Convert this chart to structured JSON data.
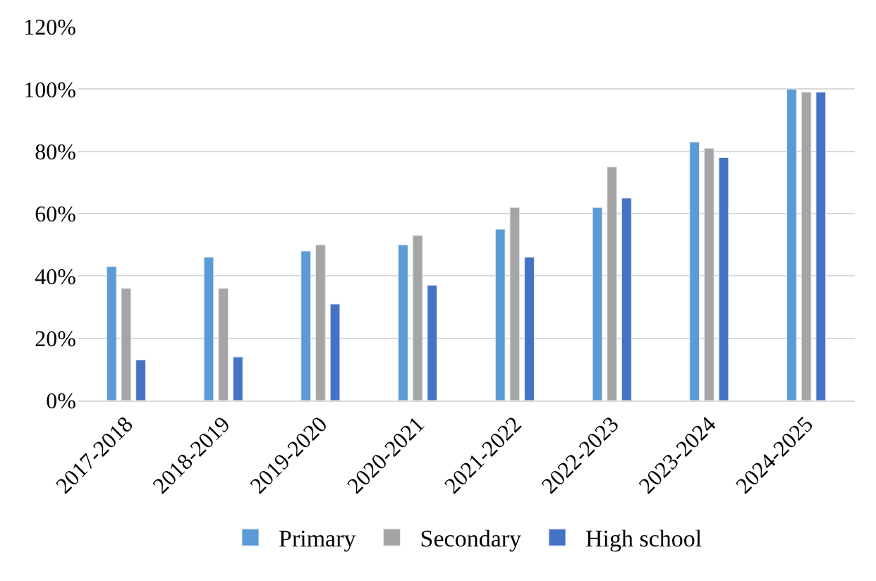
{
  "chart_data": {
    "type": "bar",
    "categories": [
      "2017-2018",
      "2018-2019",
      "2019-2020",
      "2020-2021",
      "2021-2022",
      "2022-2023",
      "2023-2024",
      "2024-2025"
    ],
    "series": [
      {
        "name": "Primary",
        "color": "#5b9bd5",
        "values": [
          43,
          46,
          48,
          50,
          55,
          62,
          83,
          100
        ]
      },
      {
        "name": "Secondary",
        "color": "#a5a5a5",
        "values": [
          36,
          36,
          50,
          53,
          62,
          75,
          81,
          99
        ]
      },
      {
        "name": "High school",
        "color": "#4472c4",
        "values": [
          13,
          14,
          31,
          37,
          46,
          65,
          78,
          99
        ]
      }
    ],
    "ylim": [
      0,
      120
    ],
    "yticks": [
      {
        "value": 0,
        "label": "0%"
      },
      {
        "value": 20,
        "label": "20%"
      },
      {
        "value": 40,
        "label": "40%"
      },
      {
        "value": 60,
        "label": "60%"
      },
      {
        "value": 80,
        "label": "80%"
      },
      {
        "value": 100,
        "label": "100%"
      },
      {
        "value": 120,
        "label": "120%"
      }
    ],
    "grid": "y",
    "legend": "bottom"
  }
}
